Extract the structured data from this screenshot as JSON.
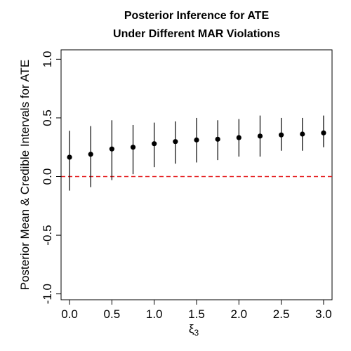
{
  "chart_data": {
    "type": "scatter",
    "title_lines": [
      "Posterior Inference for ATE",
      "Under Different MAR Violations"
    ],
    "xlabel": "ξ",
    "xlabel_subscript": "3",
    "ylabel": "Posterior Mean & Credible Intervals for ATE",
    "xlim": [
      -0.1,
      3.1
    ],
    "ylim": [
      -1.05,
      1.08
    ],
    "x_ticks": [
      0.0,
      0.5,
      1.0,
      1.5,
      2.0,
      2.5,
      3.0
    ],
    "x_tick_labels": [
      "0.0",
      "0.5",
      "1.0",
      "1.5",
      "2.0",
      "2.5",
      "3.0"
    ],
    "y_ticks": [
      -1.0,
      -0.5,
      0.0,
      0.5,
      1.0
    ],
    "y_tick_labels": [
      "-1.0",
      "-0.5",
      "0.0",
      "0.5",
      "1.0"
    ],
    "grid": false,
    "reference_line": {
      "y": 0,
      "color": "#e41a1c",
      "style": "dashed"
    },
    "points": [
      {
        "x": 0.0,
        "mean": 0.165,
        "lower": -0.12,
        "upper": 0.39
      },
      {
        "x": 0.25,
        "mean": 0.19,
        "lower": -0.09,
        "upper": 0.43
      },
      {
        "x": 0.5,
        "mean": 0.235,
        "lower": -0.03,
        "upper": 0.48
      },
      {
        "x": 0.75,
        "mean": 0.25,
        "lower": 0.02,
        "upper": 0.44
      },
      {
        "x": 1.0,
        "mean": 0.28,
        "lower": 0.08,
        "upper": 0.46
      },
      {
        "x": 1.25,
        "mean": 0.298,
        "lower": 0.11,
        "upper": 0.47
      },
      {
        "x": 1.5,
        "mean": 0.312,
        "lower": 0.12,
        "upper": 0.5
      },
      {
        "x": 1.75,
        "mean": 0.318,
        "lower": 0.14,
        "upper": 0.48
      },
      {
        "x": 2.0,
        "mean": 0.332,
        "lower": 0.17,
        "upper": 0.49
      },
      {
        "x": 2.25,
        "mean": 0.345,
        "lower": 0.17,
        "upper": 0.52
      },
      {
        "x": 2.5,
        "mean": 0.355,
        "lower": 0.22,
        "upper": 0.5
      },
      {
        "x": 2.75,
        "mean": 0.362,
        "lower": 0.22,
        "upper": 0.5
      },
      {
        "x": 3.0,
        "mean": 0.372,
        "lower": 0.25,
        "upper": 0.52
      }
    ]
  }
}
